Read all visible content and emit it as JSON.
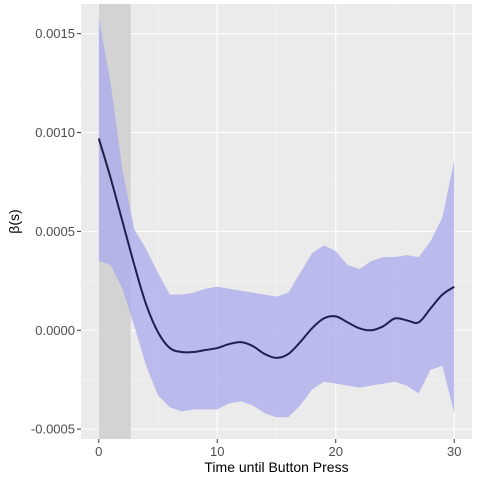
{
  "chart_data": {
    "type": "line",
    "title": "",
    "xlabel": "Time until Button Press",
    "ylabel": "β(s)",
    "xlim": [
      -1.5,
      31.5
    ],
    "ylim": [
      -0.00055,
      0.00165
    ],
    "x_ticks": [
      0,
      10,
      20,
      30
    ],
    "x_tick_labels": [
      "0",
      "10",
      "20",
      "30"
    ],
    "y_ticks": [
      -0.0005,
      0.0,
      0.0005,
      0.001,
      0.0015
    ],
    "y_tick_labels": [
      "-0.0005",
      "0.0000",
      "0.0005",
      "0.0010",
      "0.0015"
    ],
    "grid": true,
    "shaded_region": {
      "x_start": 0,
      "x_end": 2.7,
      "color": "#d3d3d3"
    },
    "colors": {
      "panel": "#ebebeb",
      "grid_major": "#ffffff",
      "grid_minor": "#f5f5f5",
      "band_fill": "#aaaaee",
      "line": "#1f1f4f"
    },
    "series": [
      {
        "x": [
          0,
          1,
          2,
          3,
          4,
          5,
          6,
          7,
          8,
          9,
          10,
          11,
          12,
          13,
          14,
          15,
          16,
          17,
          18,
          19,
          20,
          21,
          22,
          23,
          24,
          25,
          26,
          27,
          28,
          29,
          30
        ],
        "values": [
          0.00097,
          0.00077,
          0.00055,
          0.00033,
          0.00013,
          -1e-05,
          -9e-05,
          -0.00011,
          -0.00011,
          -0.0001,
          -9e-05,
          -7e-05,
          -6e-05,
          -8e-05,
          -0.00012,
          -0.00014,
          -0.00012,
          -6e-05,
          1e-05,
          6e-05,
          7e-05,
          4e-05,
          1e-05,
          0.0,
          2e-05,
          6e-05,
          5e-05,
          4e-05,
          0.00011,
          0.00018,
          0.00022
        ],
        "lower": [
          0.00035,
          0.00033,
          0.00021,
          2e-05,
          -0.00018,
          -0.00033,
          -0.00039,
          -0.00041,
          -0.0004,
          -0.0004,
          -0.0004,
          -0.00037,
          -0.00036,
          -0.00038,
          -0.00042,
          -0.00044,
          -0.00044,
          -0.00038,
          -0.0003,
          -0.00026,
          -0.00027,
          -0.00028,
          -0.00029,
          -0.00028,
          -0.00027,
          -0.00026,
          -0.00028,
          -0.00032,
          -0.0002,
          -0.00018,
          -0.00042
        ],
        "upper": [
          0.00158,
          0.00125,
          0.00081,
          0.00051,
          0.00041,
          0.00029,
          0.00018,
          0.00018,
          0.00019,
          0.00021,
          0.00022,
          0.00021,
          0.0002,
          0.00019,
          0.00018,
          0.00017,
          0.00019,
          0.00029,
          0.00039,
          0.00043,
          0.0004,
          0.00033,
          0.00031,
          0.00035,
          0.00037,
          0.00037,
          0.00038,
          0.00037,
          0.00045,
          0.00057,
          0.00086
        ]
      }
    ]
  }
}
